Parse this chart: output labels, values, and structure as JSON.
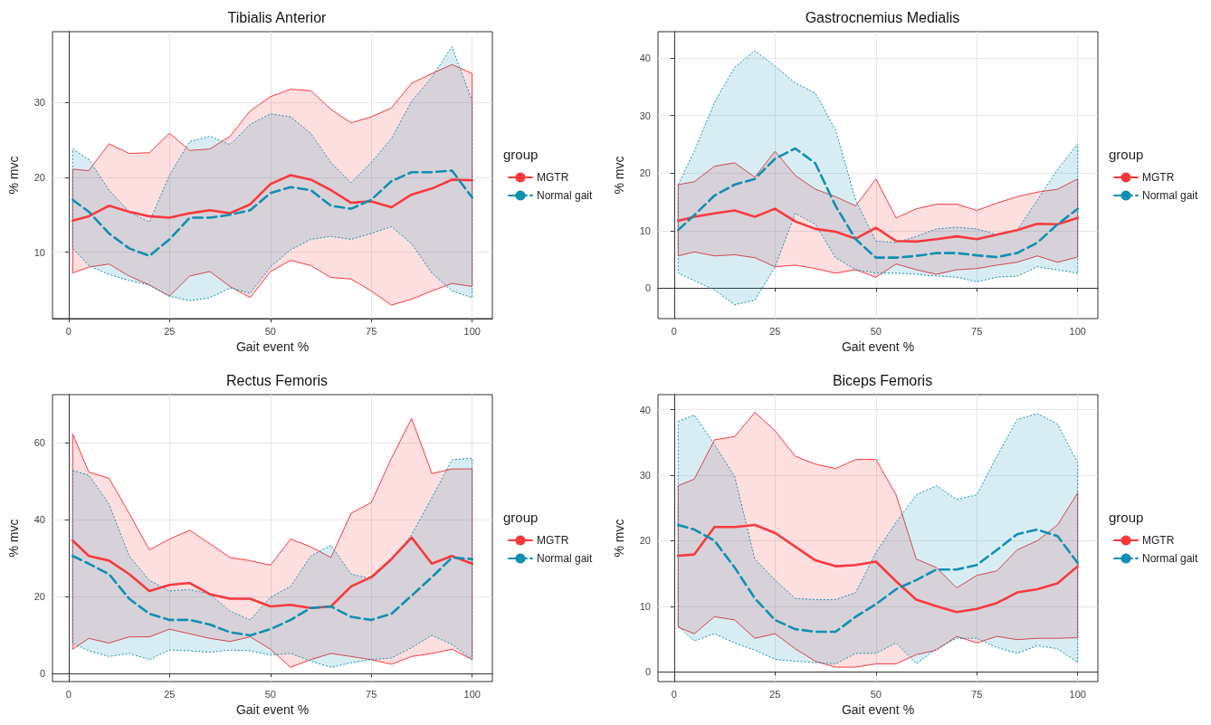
{
  "chart_data": [
    {
      "type": "line",
      "title": "Tibialis Anterior",
      "xlabel": "Gait event %",
      "ylabel": "% mvc",
      "legend_title": "group",
      "legend": "right",
      "grid": true,
      "marker": "none",
      "x": [
        1,
        5,
        10,
        15,
        20,
        25,
        30,
        35,
        40,
        45,
        50,
        55,
        60,
        65,
        70,
        75,
        80,
        85,
        90,
        95,
        100
      ],
      "xlim": [
        -4,
        105
      ],
      "xticks": [
        0,
        25,
        50,
        75,
        100
      ],
      "ylim": [
        1.1,
        39.5
      ],
      "yticks": [
        10,
        20,
        30
      ],
      "series": [
        {
          "name": "MGTR",
          "color": "#f8393d",
          "line_style": "solid",
          "values": [
            14.2,
            14.8,
            16.2,
            15.4,
            14.8,
            14.6,
            15.2,
            15.6,
            15.2,
            16.4,
            19.1,
            20.3,
            19.7,
            18.3,
            16.6,
            16.8,
            16.0,
            17.7,
            18.5,
            19.7,
            19.6
          ],
          "upper": [
            21.1,
            20.9,
            24.5,
            23.2,
            23.3,
            25.9,
            23.6,
            23.8,
            25.5,
            28.9,
            30.8,
            31.8,
            31.6,
            29.1,
            27.3,
            28.1,
            29.3,
            32.6,
            33.9,
            35.1,
            33.9
          ],
          "lower": [
            7.2,
            8.0,
            8.4,
            6.8,
            5.6,
            4.1,
            6.8,
            7.4,
            5.4,
            3.9,
            7.4,
            8.9,
            8.2,
            6.6,
            6.4,
            4.8,
            2.9,
            3.7,
            4.8,
            5.8,
            5.4
          ]
        },
        {
          "name": "Normal gait",
          "color": "#0f8fb3",
          "line_style": "dashed",
          "values": [
            17.0,
            15.4,
            12.5,
            10.5,
            9.5,
            11.7,
            14.6,
            14.6,
            15.0,
            15.6,
            17.9,
            18.7,
            18.3,
            16.2,
            15.8,
            17.0,
            19.5,
            20.7,
            20.7,
            20.9,
            17.3
          ],
          "upper": [
            23.8,
            22.4,
            18.3,
            15.4,
            14.0,
            20.3,
            24.8,
            25.5,
            24.4,
            27.1,
            28.5,
            28.1,
            25.9,
            22.0,
            19.3,
            22.0,
            25.2,
            30.2,
            33.4,
            37.5,
            30.2
          ],
          "lower": [
            10.5,
            8.2,
            7.0,
            6.2,
            5.6,
            4.1,
            3.5,
            3.9,
            5.2,
            4.5,
            8.0,
            10.3,
            11.7,
            12.1,
            11.7,
            12.5,
            13.4,
            11.1,
            7.2,
            4.8,
            3.9
          ]
        }
      ]
    },
    {
      "type": "line",
      "title": "Gastrocnemius Medialis",
      "xlabel": "Gait event %",
      "ylabel": "% mvc",
      "legend_title": "group",
      "legend": "right",
      "grid": true,
      "marker": "none",
      "x": [
        1,
        5,
        10,
        15,
        20,
        25,
        30,
        35,
        40,
        45,
        50,
        55,
        60,
        65,
        70,
        75,
        80,
        85,
        90,
        95,
        100
      ],
      "xlim": [
        -4,
        105
      ],
      "xticks": [
        0,
        25,
        50,
        75,
        100
      ],
      "ylim": [
        -5.3,
        44.6
      ],
      "yticks": [
        0,
        10,
        20,
        30,
        40
      ],
      "series": [
        {
          "name": "MGTR",
          "color": "#f8393d",
          "line_style": "solid",
          "values": [
            11.7,
            12.4,
            13.0,
            13.5,
            12.4,
            13.8,
            11.6,
            10.3,
            9.8,
            8.6,
            10.5,
            8.2,
            8.1,
            8.5,
            9.0,
            8.5,
            9.3,
            10.1,
            11.2,
            11.1,
            12.2
          ],
          "upper": [
            18.0,
            18.5,
            21.2,
            21.8,
            19.3,
            23.8,
            19.6,
            17.2,
            15.9,
            14.3,
            19.0,
            12.2,
            13.8,
            14.6,
            14.6,
            13.5,
            14.8,
            15.9,
            16.7,
            17.2,
            19.0
          ],
          "lower": [
            5.6,
            6.3,
            5.6,
            5.8,
            5.3,
            3.7,
            4.0,
            3.4,
            2.6,
            3.2,
            1.9,
            4.2,
            3.2,
            2.4,
            3.2,
            3.4,
            4.0,
            4.5,
            5.6,
            4.5,
            5.4
          ]
        },
        {
          "name": "Normal gait",
          "color": "#0f8fb3",
          "line_style": "dashed",
          "values": [
            10.1,
            12.7,
            16.1,
            18.0,
            19.0,
            22.5,
            24.3,
            21.7,
            14.3,
            8.5,
            5.3,
            5.3,
            5.6,
            6.1,
            6.1,
            5.7,
            5.4,
            6.1,
            7.9,
            11.1,
            13.8
          ],
          "upper": [
            18.0,
            23.8,
            32.3,
            38.4,
            41.3,
            38.6,
            35.7,
            33.9,
            27.5,
            15.3,
            8.2,
            7.9,
            9.0,
            10.3,
            10.6,
            10.3,
            9.3,
            10.1,
            15.3,
            20.6,
            25.1
          ],
          "lower": [
            2.6,
            1.3,
            -0.3,
            -2.9,
            -2.1,
            3.7,
            13.0,
            11.1,
            5.3,
            3.2,
            2.6,
            2.6,
            2.4,
            2.1,
            1.9,
            1.1,
            1.9,
            2.1,
            3.7,
            3.2,
            2.6
          ]
        }
      ]
    },
    {
      "type": "line",
      "title": "Rectus Femoris",
      "xlabel": "Gait event %",
      "ylabel": "% mvc",
      "legend_title": "group",
      "legend": "right",
      "grid": true,
      "marker": "none",
      "x": [
        1,
        5,
        10,
        15,
        20,
        25,
        30,
        35,
        40,
        45,
        50,
        55,
        60,
        65,
        70,
        75,
        80,
        85,
        90,
        95,
        100
      ],
      "xlim": [
        -4,
        105
      ],
      "xticks": [
        0,
        25,
        50,
        75,
        100
      ],
      "ylim": [
        -2.1,
        72.4
      ],
      "yticks": [
        0,
        20,
        40,
        60
      ],
      "series": [
        {
          "name": "MGTR",
          "color": "#f8393d",
          "line_style": "solid",
          "values": [
            34.5,
            30.5,
            29.3,
            25.8,
            21.4,
            23.0,
            23.5,
            20.6,
            19.4,
            19.4,
            17.4,
            17.8,
            17.0,
            17.4,
            22.6,
            25.0,
            29.7,
            35.3,
            28.5,
            30.5,
            28.5
          ],
          "upper": [
            62.2,
            52.3,
            50.7,
            41.6,
            32.1,
            34.9,
            37.2,
            33.7,
            30.1,
            29.3,
            28.1,
            34.9,
            32.9,
            30.1,
            41.6,
            44.4,
            55.9,
            66.2,
            51.9,
            53.1,
            53.1
          ],
          "lower": [
            6.3,
            9.1,
            7.9,
            9.5,
            9.5,
            11.5,
            10.3,
            9.1,
            8.3,
            9.5,
            6.3,
            1.6,
            3.6,
            5.2,
            4.4,
            3.6,
            2.4,
            4.4,
            5.2,
            6.3,
            3.6
          ]
        },
        {
          "name": "Normal gait",
          "color": "#0f8fb3",
          "line_style": "dashed",
          "values": [
            30.5,
            28.5,
            25.8,
            19.4,
            15.5,
            13.9,
            13.9,
            12.7,
            10.7,
            9.9,
            11.5,
            13.9,
            17.0,
            17.4,
            14.7,
            13.9,
            15.5,
            20.2,
            25.0,
            30.1,
            29.7
          ],
          "upper": [
            52.7,
            51.5,
            44.0,
            30.5,
            24.2,
            21.4,
            21.8,
            20.6,
            16.2,
            13.9,
            19.8,
            22.6,
            30.5,
            33.3,
            25.8,
            24.6,
            29.3,
            36.1,
            45.6,
            55.5,
            55.9
          ],
          "lower": [
            7.9,
            5.9,
            4.4,
            5.2,
            3.6,
            6.1,
            5.9,
            5.5,
            6.1,
            5.9,
            4.8,
            5.2,
            3.2,
            1.6,
            2.8,
            3.6,
            4.0,
            6.7,
            9.9,
            7.5,
            3.7
          ]
        }
      ]
    },
    {
      "type": "line",
      "title": "Biceps Femoris",
      "xlabel": "Gait event %",
      "ylabel": "% mvc",
      "legend_title": "group",
      "legend": "right",
      "grid": true,
      "marker": "none",
      "x": [
        1,
        5,
        10,
        15,
        20,
        25,
        30,
        35,
        40,
        45,
        50,
        55,
        60,
        65,
        70,
        75,
        80,
        85,
        90,
        95,
        100
      ],
      "xlim": [
        -4,
        105
      ],
      "xticks": [
        0,
        25,
        50,
        75,
        100
      ],
      "ylim": [
        -1.5,
        42.3
      ],
      "yticks": [
        0,
        10,
        20,
        30,
        40
      ],
      "series": [
        {
          "name": "MGTR",
          "color": "#f8393d",
          "line_style": "solid",
          "values": [
            17.7,
            17.9,
            22.1,
            22.1,
            22.4,
            21.2,
            19.1,
            17.0,
            16.1,
            16.3,
            16.8,
            13.8,
            11.0,
            10.0,
            9.1,
            9.6,
            10.5,
            12.1,
            12.6,
            13.5,
            16.1
          ],
          "upper": [
            28.4,
            29.4,
            35.4,
            35.9,
            39.6,
            36.8,
            32.9,
            31.7,
            31.0,
            32.4,
            32.4,
            27.0,
            17.2,
            15.9,
            12.8,
            14.7,
            15.4,
            18.6,
            20.0,
            22.4,
            27.3
          ],
          "lower": [
            6.8,
            5.8,
            8.4,
            7.9,
            5.1,
            5.8,
            3.5,
            1.6,
            0.7,
            0.7,
            1.2,
            1.2,
            2.6,
            3.3,
            5.4,
            4.4,
            5.4,
            4.9,
            5.1,
            5.1,
            5.2
          ]
        },
        {
          "name": "Normal gait",
          "color": "#0f8fb3",
          "line_style": "dashed",
          "values": [
            22.4,
            21.7,
            20.0,
            15.9,
            11.2,
            7.9,
            6.5,
            6.1,
            6.1,
            8.4,
            10.3,
            12.6,
            14.0,
            15.6,
            15.6,
            16.3,
            18.6,
            21.0,
            21.7,
            20.7,
            16.6
          ],
          "upper": [
            38.2,
            39.2,
            34.7,
            29.8,
            17.2,
            14.0,
            11.2,
            11.0,
            11.0,
            12.1,
            18.2,
            22.8,
            27.0,
            28.4,
            26.3,
            27.0,
            32.9,
            38.5,
            39.4,
            37.8,
            31.9
          ],
          "lower": [
            7.0,
            4.7,
            5.8,
            4.4,
            3.3,
            1.9,
            1.6,
            1.4,
            1.2,
            2.8,
            2.8,
            4.4,
            1.2,
            3.5,
            5.1,
            5.1,
            3.7,
            2.8,
            4.0,
            3.5,
            1.4
          ]
        }
      ]
    }
  ]
}
